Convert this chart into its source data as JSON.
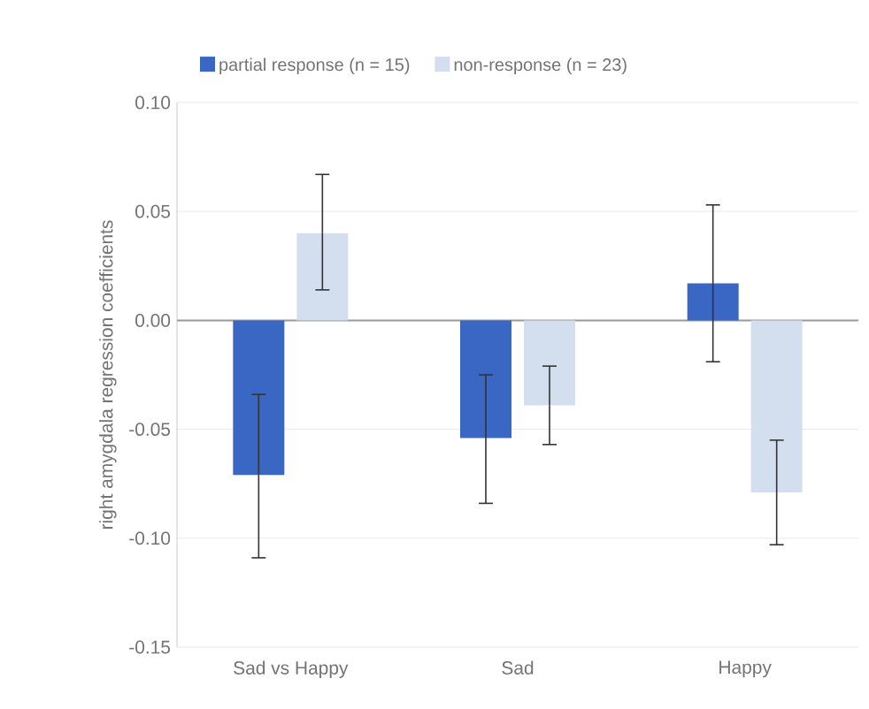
{
  "chart_data": {
    "type": "bar",
    "ylabel": "right amygdala regression coefficients",
    "categories": [
      "Sad vs Happy",
      "Sad",
      "Happy"
    ],
    "series": [
      {
        "name": "partial response (n = 15)",
        "color": "#3a66c4",
        "values": [
          -0.071,
          -0.054,
          0.017
        ],
        "errors": [
          [
            -0.109,
            -0.034
          ],
          [
            -0.084,
            -0.025
          ],
          [
            -0.019,
            0.053
          ]
        ]
      },
      {
        "name": "non-response (n = 23)",
        "color": "#d3deef",
        "values": [
          0.04,
          -0.039,
          -0.079
        ],
        "errors": [
          [
            0.014,
            0.067
          ],
          [
            -0.057,
            -0.021
          ],
          [
            -0.103,
            -0.055
          ]
        ]
      }
    ],
    "ylim": [
      -0.15,
      0.1
    ],
    "yticks": [
      {
        "value": -0.15,
        "label": "-0.15"
      },
      {
        "value": -0.1,
        "label": "-0.10"
      },
      {
        "value": -0.05,
        "label": "-0.05"
      },
      {
        "value": 0,
        "label": "0.00"
      },
      {
        "value": 0.05,
        "label": "0.05"
      },
      {
        "value": 0.1,
        "label": "0.10"
      }
    ],
    "grid": "y",
    "legend": "top"
  }
}
